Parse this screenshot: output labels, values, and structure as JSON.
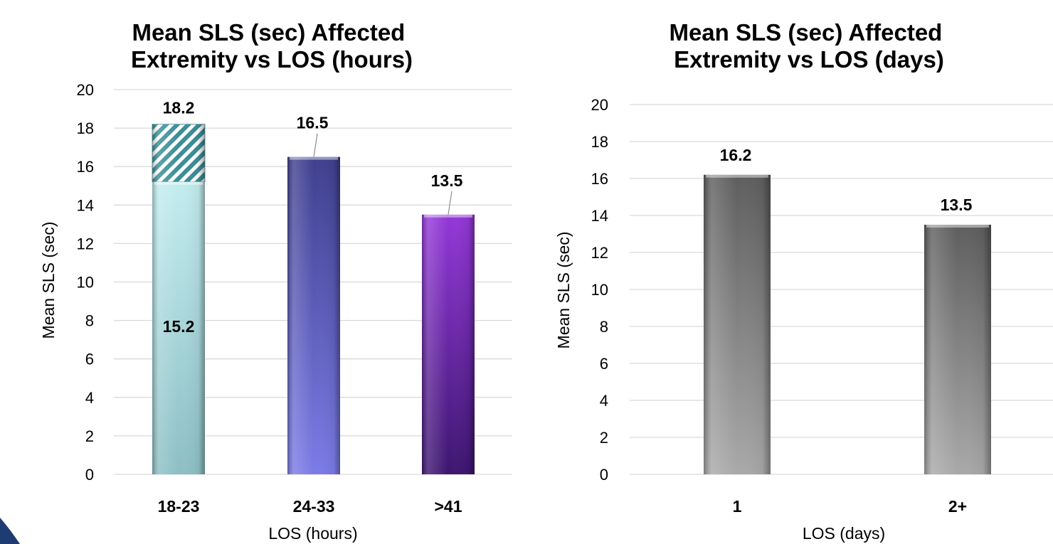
{
  "chart_data": [
    {
      "type": "bar",
      "title_lines": [
        "Mean SLS (sec) Affected",
        "Extremity vs LOS (hours)"
      ],
      "xlabel": "LOS (hours)",
      "ylabel": "Mean SLS (sec)",
      "ylim": [
        0,
        20
      ],
      "yticks": [
        0,
        2,
        4,
        6,
        8,
        10,
        12,
        14,
        16,
        18,
        20
      ],
      "grid": true,
      "categories": [
        "18-23",
        "24-33",
        ">41"
      ],
      "values": [
        18.2,
        16.5,
        13.5
      ],
      "inner_value": {
        "category": "18-23",
        "value": 15.2,
        "style": "hatched above"
      },
      "colors": [
        "#9fd4d9",
        "#5c5cc0",
        "#6a2fa0"
      ]
    },
    {
      "type": "bar",
      "title_lines": [
        "Mean SLS (sec) Affected",
        "Extremity vs LOS (days)"
      ],
      "xlabel": "LOS (days)",
      "ylabel": "Mean SLS (sec)",
      "ylim": [
        0,
        20
      ],
      "yticks": [
        0,
        2,
        4,
        6,
        8,
        10,
        12,
        14,
        16,
        18,
        20
      ],
      "grid": true,
      "categories": [
        "1",
        "2+"
      ],
      "values": [
        16.2,
        13.5
      ],
      "colors": [
        "#7a7a7a",
        "#7a7a7a"
      ]
    }
  ]
}
